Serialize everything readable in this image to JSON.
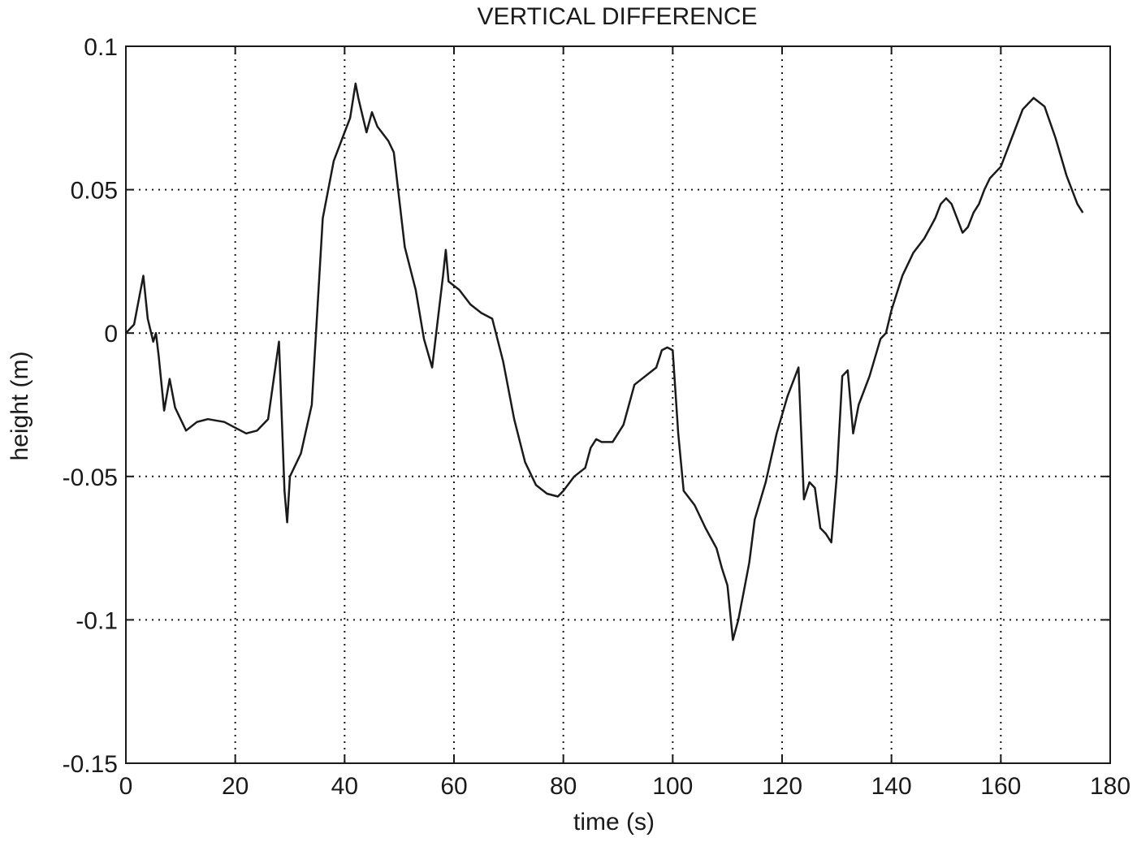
{
  "chart_data": {
    "type": "line",
    "title": "VERTICAL DIFFERENCE",
    "xlabel": "time (s)",
    "ylabel": "height (m)",
    "xlim": [
      0,
      180
    ],
    "ylim": [
      -0.15,
      0.1
    ],
    "xticks": [
      0,
      20,
      40,
      60,
      80,
      100,
      120,
      140,
      160,
      180
    ],
    "xtick_labels": [
      "0",
      "20",
      "40",
      "60",
      "80",
      "100",
      "120",
      "140",
      "160",
      "180"
    ],
    "yticks": [
      0.1,
      0.05,
      0,
      -0.05,
      -0.1,
      -0.15
    ],
    "ytick_labels": [
      "0.1",
      "0.05",
      "0",
      "-0.05",
      "-0.1",
      "-0.15"
    ],
    "grid": true,
    "series": [
      {
        "x": [
          0,
          1.5,
          2.5,
          3.2,
          4,
          5,
          5.5,
          6,
          7,
          8,
          9,
          11,
          13,
          15,
          18,
          20,
          22,
          24,
          26,
          28,
          29,
          29.5,
          30,
          32,
          34,
          36,
          38,
          40,
          41,
          42,
          42.5,
          43,
          44,
          45,
          46,
          48,
          49,
          51,
          53,
          54.5,
          56,
          58,
          58.5,
          59,
          61,
          63,
          65,
          67,
          69,
          71,
          73,
          75,
          77,
          79,
          80,
          82,
          84,
          85,
          86,
          87,
          89,
          91,
          93,
          95,
          97,
          98,
          99,
          100,
          101,
          102,
          104,
          106,
          108,
          109,
          110,
          111,
          112,
          113,
          114,
          115,
          117,
          119,
          121,
          123,
          124,
          125,
          126,
          127,
          128,
          129,
          130,
          131,
          132,
          133,
          134,
          136,
          138,
          139,
          140,
          142,
          144,
          146,
          148,
          149,
          150,
          151,
          152,
          153,
          154,
          155,
          156,
          157,
          158,
          160,
          162,
          164,
          166,
          168,
          170,
          172,
          174,
          175
        ],
        "y": [
          0,
          0.003,
          0.013,
          0.02,
          0.005,
          -0.003,
          0,
          -0.008,
          -0.027,
          -0.016,
          -0.026,
          -0.034,
          -0.031,
          -0.03,
          -0.031,
          -0.033,
          -0.035,
          -0.034,
          -0.03,
          -0.003,
          -0.055,
          -0.066,
          -0.05,
          -0.042,
          -0.025,
          0.04,
          0.06,
          0.07,
          0.075,
          0.087,
          0.082,
          0.078,
          0.07,
          0.077,
          0.072,
          0.067,
          0.063,
          0.03,
          0.015,
          -0.002,
          -0.012,
          0.02,
          0.029,
          0.018,
          0.015,
          0.01,
          0.007,
          0.005,
          -0.01,
          -0.03,
          -0.045,
          -0.053,
          -0.056,
          -0.057,
          -0.055,
          -0.05,
          -0.047,
          -0.04,
          -0.037,
          -0.038,
          -0.038,
          -0.032,
          -0.018,
          -0.015,
          -0.012,
          -0.006,
          -0.005,
          -0.006,
          -0.035,
          -0.055,
          -0.06,
          -0.068,
          -0.075,
          -0.082,
          -0.088,
          -0.107,
          -0.1,
          -0.09,
          -0.08,
          -0.065,
          -0.052,
          -0.035,
          -0.022,
          -0.012,
          -0.058,
          -0.052,
          -0.054,
          -0.068,
          -0.07,
          -0.073,
          -0.05,
          -0.015,
          -0.013,
          -0.035,
          -0.025,
          -0.015,
          -0.002,
          0,
          0.008,
          0.02,
          0.028,
          0.033,
          0.04,
          0.045,
          0.047,
          0.045,
          0.04,
          0.035,
          0.037,
          0.042,
          0.045,
          0.05,
          0.054,
          0.058,
          0.068,
          0.078,
          0.082,
          0.079,
          0.068,
          0.055,
          0.045,
          0.042
        ]
      }
    ]
  }
}
